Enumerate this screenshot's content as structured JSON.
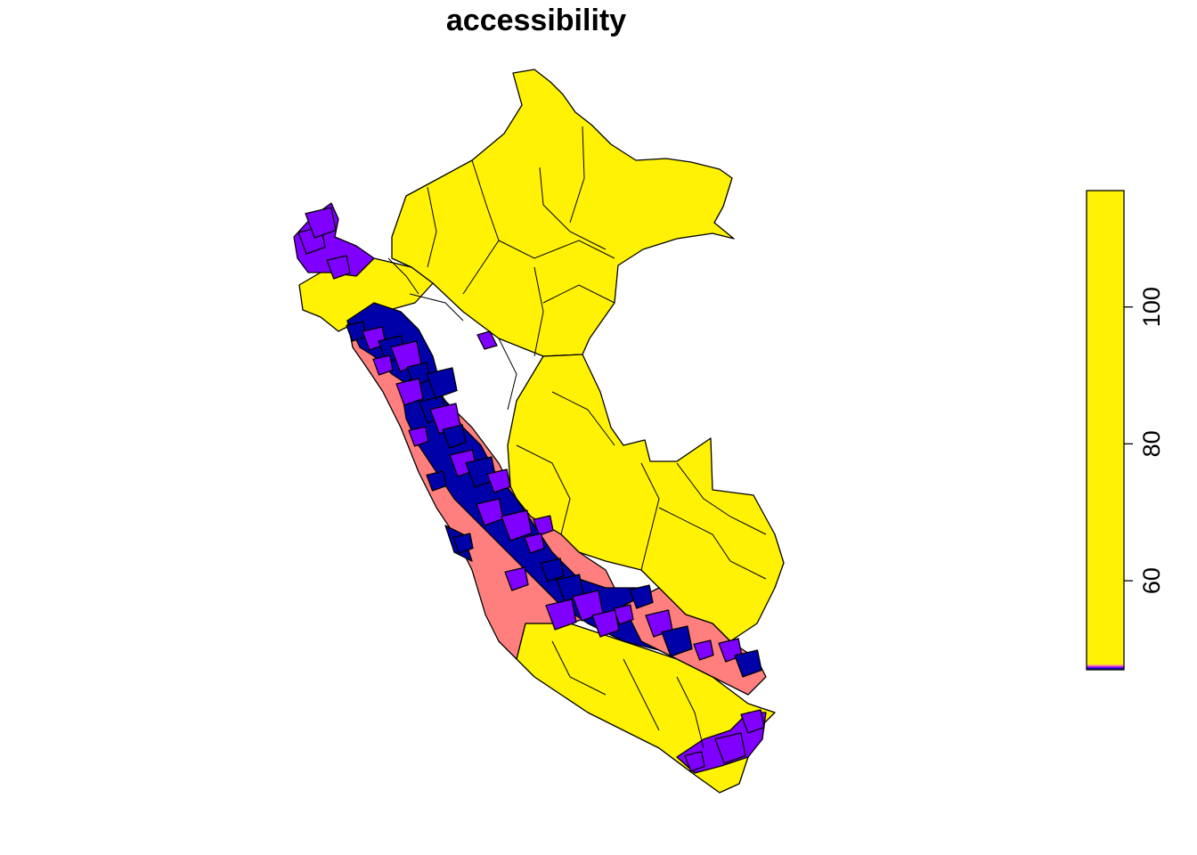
{
  "title": "accessibility",
  "colors": {
    "high": "#FFF205",
    "mid": "#FF7F7F",
    "low": "#8000FF",
    "lowest": "#0000A8",
    "border": "#000000"
  },
  "legend": {
    "range": [
      47,
      117
    ],
    "ticks": [
      "60",
      "80",
      "100"
    ],
    "tick_values": [
      60,
      80,
      100
    ],
    "palette": [
      "#0000A8",
      "#8000FF",
      "#FF7F7F",
      "#FFF205"
    ]
  },
  "regions": {
    "north_amazon": "high",
    "east_amazon": "high",
    "southeast_amazon": "high",
    "south_coast": "high",
    "northwest_coast": "high",
    "coastal_strip": "mid",
    "southern_highlands": "mid",
    "northern_andes": "low",
    "central_andes": "lowest",
    "far_south": "low"
  }
}
